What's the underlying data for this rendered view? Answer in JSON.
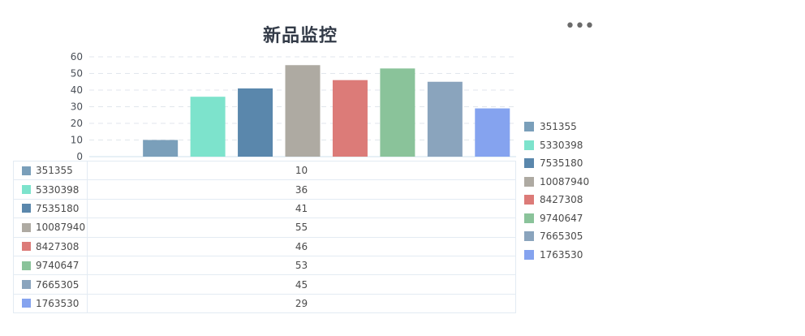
{
  "title": "新品监控",
  "more_label": "•••",
  "chart_data": {
    "type": "bar",
    "title": "新品监控",
    "xlabel": "",
    "ylabel": "",
    "ylim": [
      0,
      60
    ],
    "yticks": [
      0,
      10,
      20,
      30,
      40,
      50,
      60
    ],
    "grid": true,
    "legend": "right",
    "series": [
      {
        "name": "351355",
        "value": 10,
        "color": "#7a9fba"
      },
      {
        "name": "5330398",
        "value": 36,
        "color": "#7de3cc"
      },
      {
        "name": "7535180",
        "value": 41,
        "color": "#5a87ac"
      },
      {
        "name": "10087940",
        "value": 55,
        "color": "#aeaaa2"
      },
      {
        "name": "8427308",
        "value": 46,
        "color": "#dc7b78"
      },
      {
        "name": "9740647",
        "value": 53,
        "color": "#8ac39a"
      },
      {
        "name": "7665305",
        "value": 45,
        "color": "#8aa4bd"
      },
      {
        "name": "1763530",
        "value": 29,
        "color": "#85a3ef"
      }
    ]
  }
}
